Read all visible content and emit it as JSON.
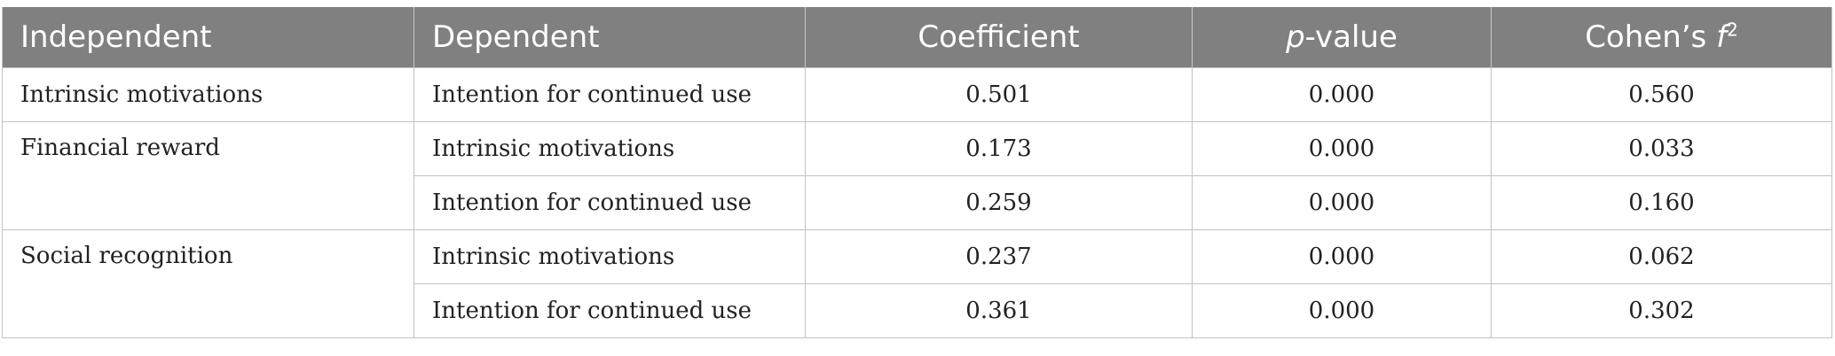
{
  "table": {
    "headers": {
      "independent": "Independent",
      "dependent": "Dependent",
      "coefficient": "Coefficient",
      "p_value_letter": "p",
      "p_value_rest": "-value",
      "cohens_base": "Cohen’s ",
      "cohens_f": "f",
      "cohens_exp": "2"
    },
    "rows": [
      {
        "independent": "Intrinsic motivations",
        "dependent": "Intention for continued use",
        "coefficient": "0.501",
        "p_value": "0.000",
        "cohens_f2": "0.560"
      },
      {
        "independent": "Financial reward",
        "dependent": "Intrinsic motivations",
        "coefficient": "0.173",
        "p_value": "0.000",
        "cohens_f2": "0.033"
      },
      {
        "independent": "",
        "dependent": "Intention for continued use",
        "coefficient": "0.259",
        "p_value": "0.000",
        "cohens_f2": "0.160"
      },
      {
        "independent": "Social recognition",
        "dependent": "Intrinsic motivations",
        "coefficient": "0.237",
        "p_value": "0.000",
        "cohens_f2": "0.062"
      },
      {
        "independent": "",
        "dependent": "Intention for continued use",
        "coefficient": "0.361",
        "p_value": "0.000",
        "cohens_f2": "0.302"
      }
    ]
  }
}
